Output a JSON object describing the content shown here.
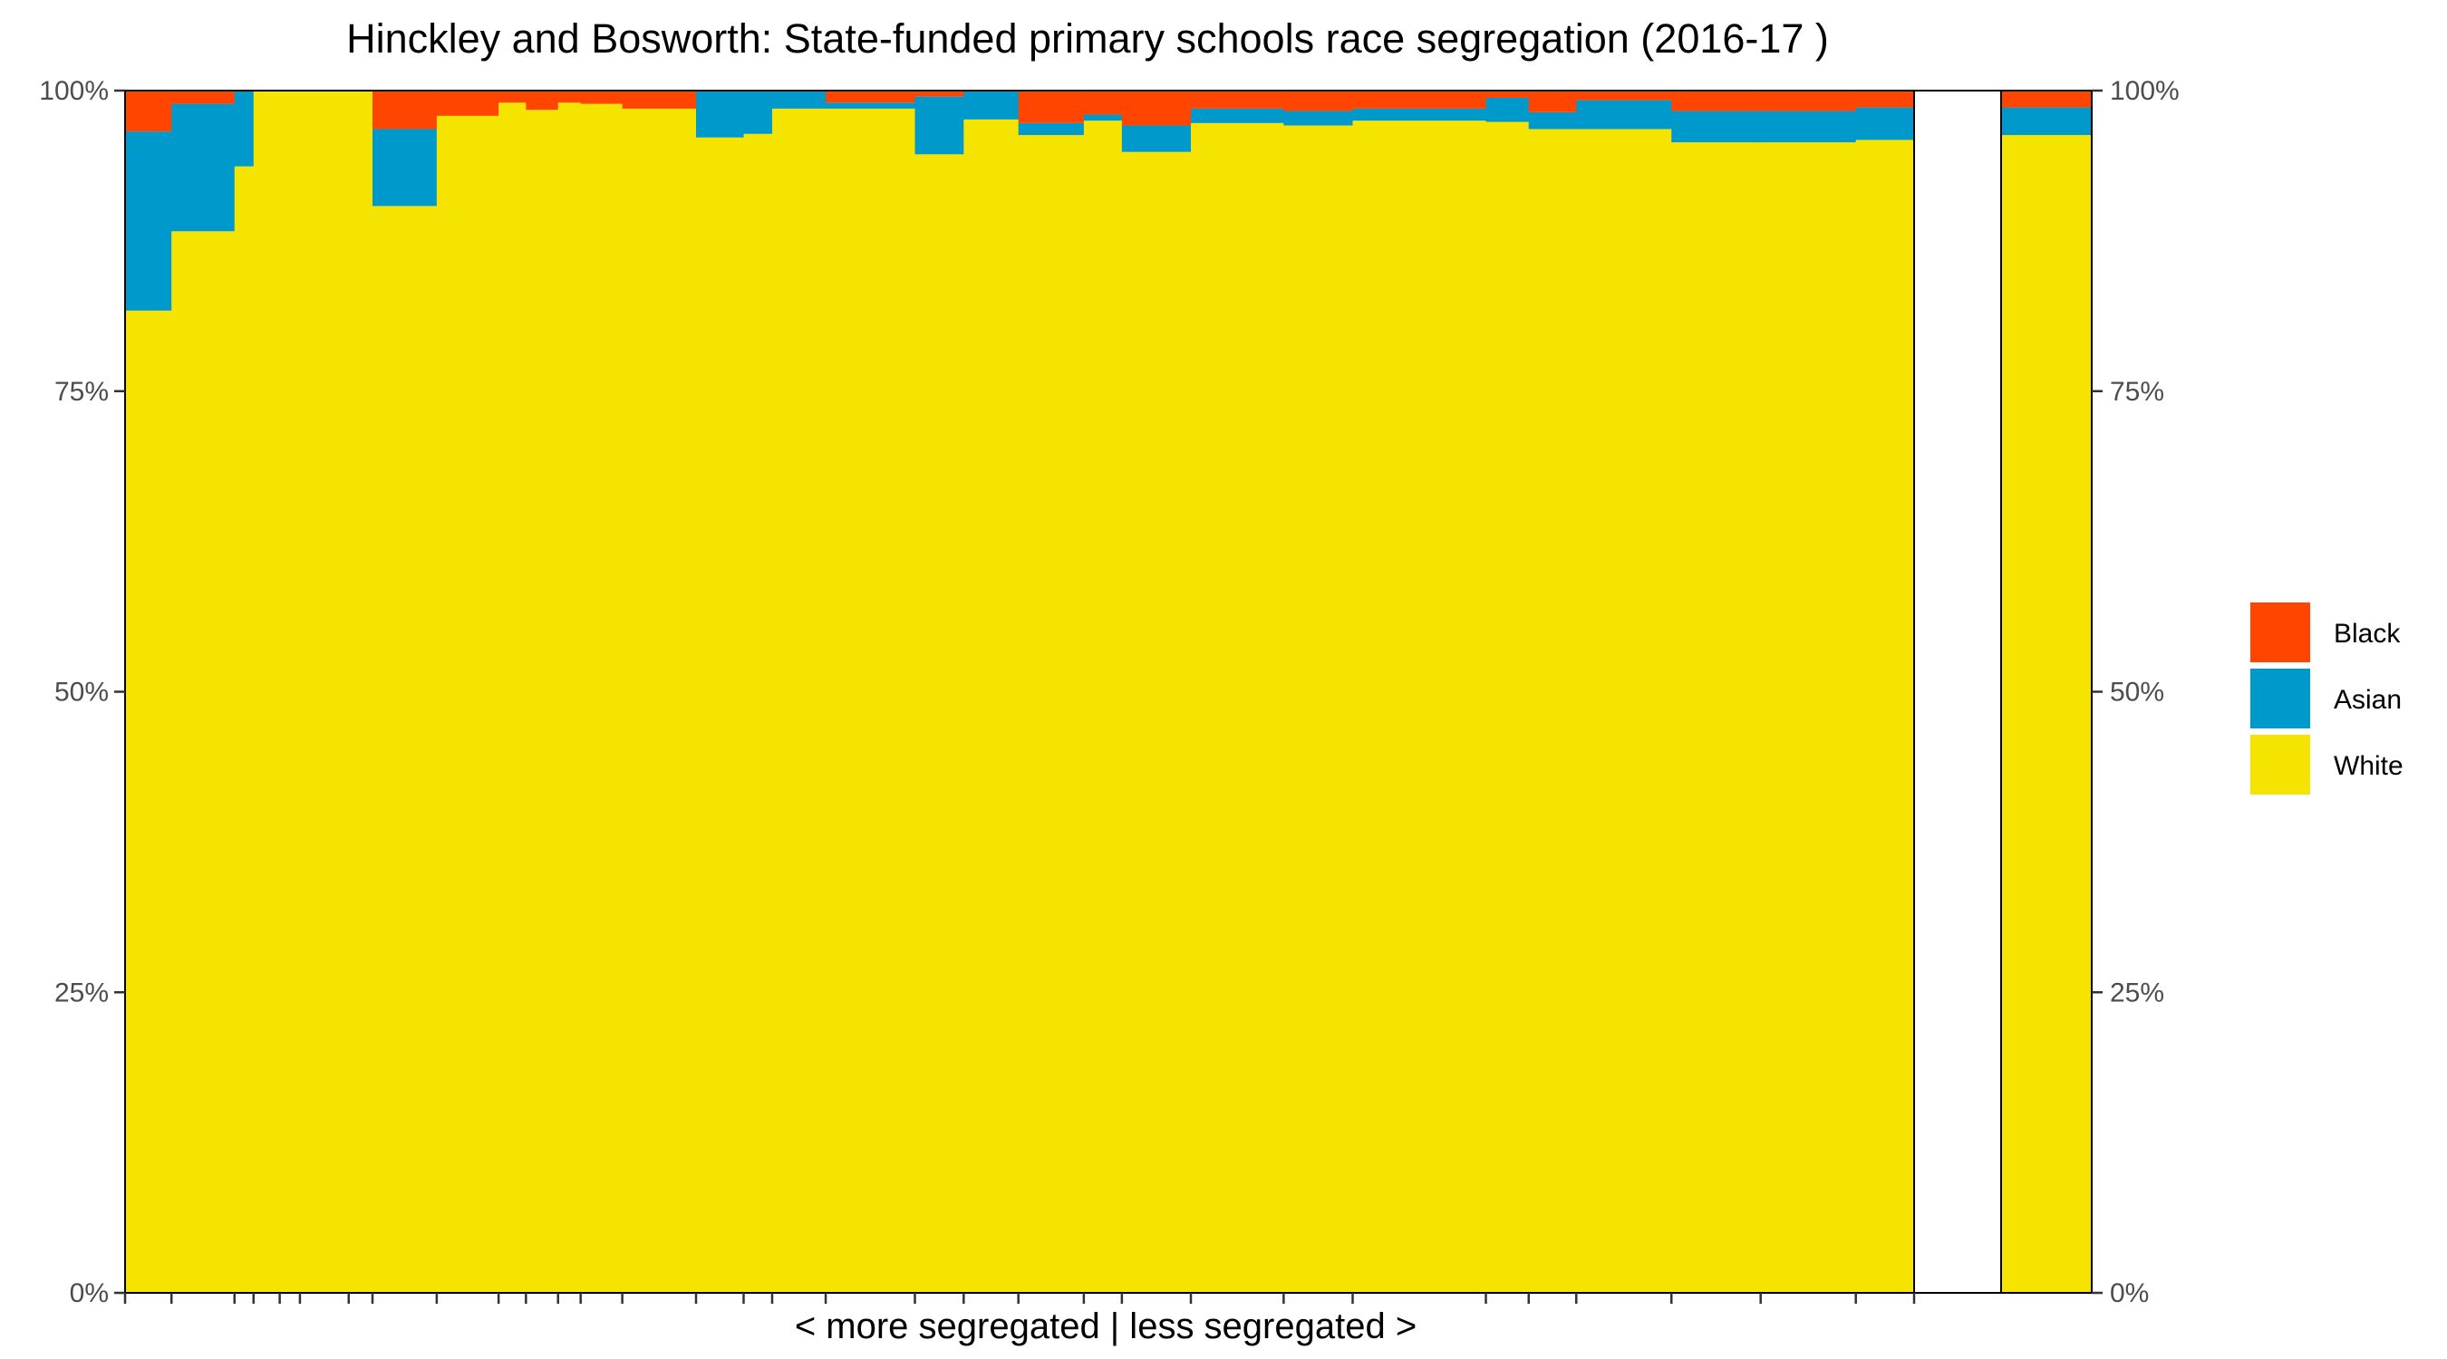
{
  "chart_data": {
    "type": "bar",
    "stacked": true,
    "variable_width": true,
    "title": "Hinckley and Bosworth: State-funded primary schools race segregation (2016-17 )",
    "xlabel": "< more segregated | less segregated >",
    "ylabel": "",
    "ylim": [
      0,
      1
    ],
    "y_ticks": [
      {
        "value": 0,
        "label": "0%"
      },
      {
        "value": 0.25,
        "label": "25%"
      },
      {
        "value": 0.5,
        "label": "50%"
      },
      {
        "value": 0.75,
        "label": "75%"
      },
      {
        "value": 1,
        "label": "100%"
      }
    ],
    "secondary_y_axis": true,
    "grid": false,
    "legend_position": "right",
    "legend": [
      {
        "name": "Black",
        "color": "#FF4500"
      },
      {
        "name": "Asian",
        "color": "#0099CC"
      },
      {
        "name": "White",
        "color": "#F5E400"
      }
    ],
    "schools": [
      {
        "width": 3.9,
        "white": 0.817,
        "asian": 0.149,
        "black": 0.034
      },
      {
        "width": 5.3,
        "white": 0.883,
        "asian": 0.106,
        "black": 0.011
      },
      {
        "width": 1.6,
        "white": 0.937,
        "asian": 0.063,
        "black": 0.0
      },
      {
        "width": 2.2,
        "white": 1.0,
        "asian": 0.0,
        "black": 0.0
      },
      {
        "width": 1.7,
        "white": 1.0,
        "asian": 0.0,
        "black": 0.0
      },
      {
        "width": 4.1,
        "white": 1.0,
        "asian": 0.0,
        "black": 0.0
      },
      {
        "width": 2.0,
        "white": 1.0,
        "asian": 0.0,
        "black": 0.0
      },
      {
        "width": 5.4,
        "white": 0.904,
        "asian": 0.064,
        "black": 0.032
      },
      {
        "width": 5.2,
        "white": 0.979,
        "asian": 0.0,
        "black": 0.021
      },
      {
        "width": 2.3,
        "white": 0.99,
        "asian": 0.0,
        "black": 0.01
      },
      {
        "width": 2.7,
        "white": 0.984,
        "asian": 0.0,
        "black": 0.016
      },
      {
        "width": 1.9,
        "white": 0.99,
        "asian": 0.0,
        "black": 0.01
      },
      {
        "width": 3.5,
        "white": 0.989,
        "asian": 0.0,
        "black": 0.011
      },
      {
        "width": 6.2,
        "white": 0.985,
        "asian": 0.0,
        "black": 0.015
      },
      {
        "width": 4.0,
        "white": 0.961,
        "asian": 0.039,
        "black": 0.0
      },
      {
        "width": 2.4,
        "white": 0.964,
        "asian": 0.036,
        "black": 0.0
      },
      {
        "width": 4.5,
        "white": 0.985,
        "asian": 0.015,
        "black": 0.0
      },
      {
        "width": 7.5,
        "white": 0.985,
        "asian": 0.005,
        "black": 0.01
      },
      {
        "width": 4.1,
        "white": 0.947,
        "asian": 0.048,
        "black": 0.005
      },
      {
        "width": 4.6,
        "white": 0.976,
        "asian": 0.024,
        "black": 0.0
      },
      {
        "width": 5.5,
        "white": 0.963,
        "asian": 0.01,
        "black": 0.027
      },
      {
        "width": 3.2,
        "white": 0.975,
        "asian": 0.005,
        "black": 0.02
      },
      {
        "width": 5.8,
        "white": 0.949,
        "asian": 0.022,
        "black": 0.029
      },
      {
        "width": 7.8,
        "white": 0.973,
        "asian": 0.012,
        "black": 0.015
      },
      {
        "width": 5.8,
        "white": 0.971,
        "asian": 0.012,
        "black": 0.017
      },
      {
        "width": 11.2,
        "white": 0.975,
        "asian": 0.01,
        "black": 0.015
      },
      {
        "width": 3.6,
        "white": 0.974,
        "asian": 0.02,
        "black": 0.006
      },
      {
        "width": 4.0,
        "white": 0.968,
        "asian": 0.014,
        "black": 0.018
      },
      {
        "width": 8.0,
        "white": 0.968,
        "asian": 0.024,
        "black": 0.008
      },
      {
        "width": 7.5,
        "white": 0.957,
        "asian": 0.026,
        "black": 0.017
      },
      {
        "width": 8.0,
        "white": 0.957,
        "asian": 0.026,
        "black": 0.017
      },
      {
        "width": 4.9,
        "white": 0.959,
        "asian": 0.027,
        "black": 0.014
      }
    ],
    "summary_bar": {
      "white": 0.963,
      "asian": 0.023,
      "black": 0.014
    }
  }
}
